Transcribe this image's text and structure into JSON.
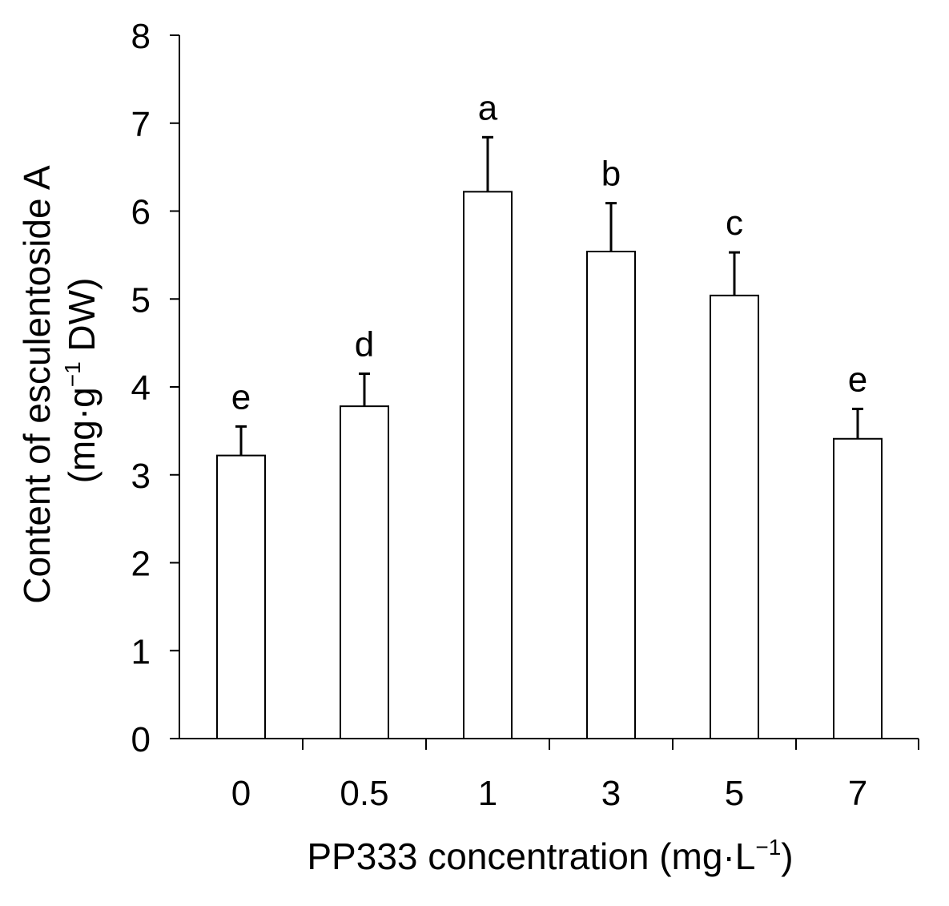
{
  "chart_data": {
    "type": "bar",
    "categories": [
      "0",
      "0.5",
      "1",
      "3",
      "5",
      "7"
    ],
    "values": [
      3.22,
      3.78,
      6.22,
      5.54,
      5.04,
      3.41
    ],
    "errors": [
      0.33,
      0.37,
      0.62,
      0.55,
      0.49,
      0.34
    ],
    "significance_letters": [
      "e",
      "d",
      "a",
      "b",
      "c",
      "e"
    ],
    "ylim": [
      0,
      8
    ],
    "yticks": [
      "0",
      "1",
      "2",
      "3",
      "4",
      "5",
      "6",
      "7",
      "8"
    ],
    "ylabel_line1": "Content of esculentoside A",
    "ylabel_line2_prefix": "(mg·g",
    "ylabel_line2_sup": "−1",
    "ylabel_line2_suffix": " DW)",
    "xlabel_prefix": "PP333 concentration (mg·L",
    "xlabel_sup": "−1",
    "xlabel_suffix": ")",
    "bar_fill": "#ffffff",
    "bar_stroke": "#000000",
    "grid": false
  }
}
